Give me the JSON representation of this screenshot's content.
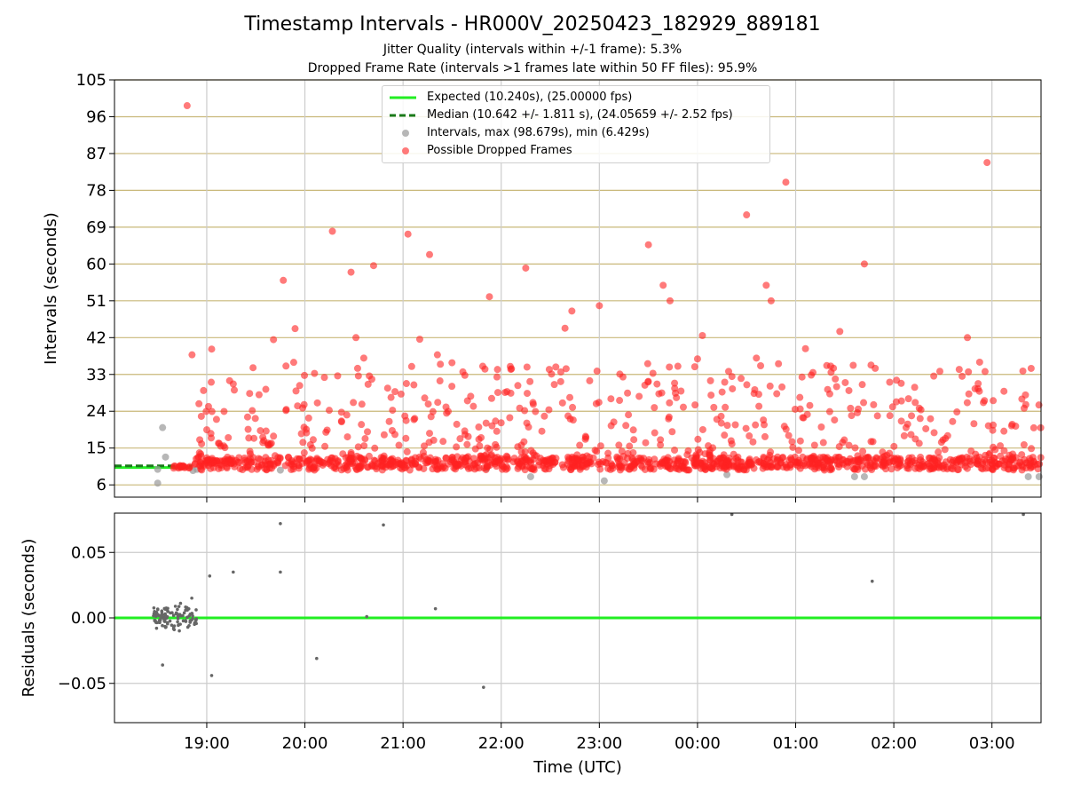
{
  "title": "Timestamp Intervals - HR000V_20250423_182929_889181",
  "subtitle_lines": [
    "Jitter Quality (intervals within +/-1 frame): 5.3%",
    "Dropped Frame Rate (intervals >1 frames late within 50 FF files): 95.9%"
  ],
  "legend": {
    "expected": "Expected (10.240s), (25.00000 fps)",
    "median": "Median (10.642 +/- 1.811 s), (24.05659 +/- 2.52 fps)",
    "intervals": "Intervals, max (98.679s), min (6.429s)",
    "dropped": "Possible Dropped Frames"
  },
  "colors": {
    "expected": "#22ee22",
    "median": "#1a7a1a",
    "interval_points": "#999999",
    "dropped_points": "#ff2222",
    "y_grid": "#c9b87a",
    "x_grid": "#cccccc",
    "residual_points": "#666666"
  },
  "chart_data": [
    {
      "type": "scatter",
      "panel": "top",
      "ylabel": "Intervals (seconds)",
      "ylim": [
        3,
        105
      ],
      "yticks": [
        "6",
        "15",
        "24",
        "33",
        "42",
        "51",
        "60",
        "69",
        "78",
        "87",
        "96",
        "105"
      ],
      "xlim_hours": [
        18.06,
        27.5
      ],
      "expected_interval": 10.24,
      "median_interval": 10.642,
      "series": [
        {
          "name": "Intervals, max (98.679s), min (6.429s)",
          "points": [
            [
              18.5,
              6.43
            ],
            [
              18.5,
              9.8
            ],
            [
              18.55,
              20.0
            ],
            [
              18.58,
              12.8
            ],
            [
              18.86,
              9.5
            ],
            [
              18.9,
              9.8
            ],
            [
              19.75,
              9.6
            ],
            [
              21.85,
              10.0
            ],
            [
              22.3,
              8.0
            ],
            [
              23.05,
              7.0
            ],
            [
              24.3,
              8.5
            ],
            [
              25.6,
              8.0
            ],
            [
              25.7,
              8.0
            ],
            [
              27.37,
              8.0
            ],
            [
              27.48,
              8.0
            ]
          ]
        },
        {
          "name": "Possible Dropped Frames",
          "points": [
            [
              18.8,
              98.7
            ],
            [
              20.28,
              68.0
            ],
            [
              21.05,
              67.3
            ],
            [
              21.27,
              62.3
            ],
            [
              20.7,
              59.6
            ],
            [
              20.47,
              58.0
            ],
            [
              19.78,
              56.0
            ],
            [
              22.25,
              59.0
            ],
            [
              21.88,
              52.0
            ],
            [
              23.5,
              64.7
            ],
            [
              24.5,
              72.0
            ],
            [
              24.9,
              80.0
            ],
            [
              26.95,
              84.8
            ],
            [
              24.7,
              54.8
            ],
            [
              24.75,
              51.0
            ],
            [
              23.65,
              54.8
            ],
            [
              23.72,
              51.0
            ],
            [
              25.7,
              60.0
            ],
            [
              22.72,
              48.5
            ],
            [
              23.0,
              49.8
            ],
            [
              22.65,
              44.3
            ],
            [
              19.9,
              44.2
            ],
            [
              20.52,
              42.0
            ],
            [
              21.17,
              41.6
            ],
            [
              19.68,
              41.5
            ],
            [
              24.05,
              42.5
            ],
            [
              25.45,
              43.5
            ],
            [
              26.75,
              42.0
            ],
            [
              18.85,
              37.8
            ],
            [
              19.05,
              39.2
            ],
            [
              20.6,
              37.0
            ],
            [
              21.35,
              37.8
            ],
            [
              25.1,
              39.3
            ],
            [
              23.8,
              35.0
            ],
            [
              24.6,
              37.0
            ],
            [
              24.0,
              36.8
            ]
          ],
          "note": "plus a dense band of roughly 1,000 red points between 9 and 14 s across the full time range and a scattered cloud between 14 and 36 s"
        }
      ]
    },
    {
      "type": "scatter",
      "panel": "bottom",
      "xlabel": "Time (UTC)",
      "ylabel": "Residuals (seconds)",
      "ylim": [
        -0.08,
        0.08
      ],
      "yticks": [
        "−0.05",
        "0.00",
        "0.05"
      ],
      "xticks": [
        "19:00",
        "20:00",
        "21:00",
        "22:00",
        "23:00",
        "00:00",
        "01:00",
        "02:00",
        "03:00"
      ],
      "xtick_hours": [
        19,
        20,
        21,
        22,
        23,
        24,
        25,
        26,
        27
      ],
      "reference_value": 0.0,
      "series": [
        {
          "name": "Residuals",
          "points": [
            [
              18.55,
              -0.036
            ],
            [
              19.03,
              0.032
            ],
            [
              19.05,
              -0.044
            ],
            [
              19.27,
              0.035
            ],
            [
              19.75,
              0.072
            ],
            [
              19.75,
              0.035
            ],
            [
              20.12,
              -0.031
            ],
            [
              20.63,
              0.001
            ],
            [
              20.8,
              0.071
            ],
            [
              21.33,
              0.007
            ],
            [
              21.82,
              -0.053
            ],
            [
              25.78,
              0.028
            ],
            [
              24.35,
              0.079
            ],
            [
              27.32,
              0.079
            ]
          ],
          "note": "plus a tight cluster of about 110 points between 18.45 and 18.9 h with residuals from -0.015 to +0.02 s"
        }
      ]
    }
  ]
}
